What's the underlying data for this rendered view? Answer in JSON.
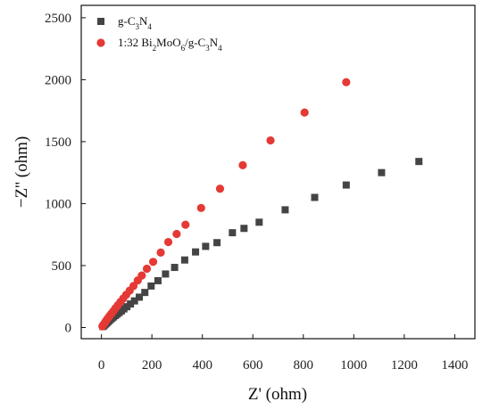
{
  "chart_data": {
    "type": "scatter",
    "xlabel": "Z' (ohm)",
    "ylabel": "−Z'' (ohm)",
    "xlim": [
      -80,
      1480
    ],
    "ylim": [
      -90,
      2600
    ],
    "xticks": [
      0,
      200,
      400,
      600,
      800,
      1000,
      1200,
      1400
    ],
    "yticks": [
      0,
      500,
      1000,
      1500,
      2000,
      2500
    ],
    "grid": false,
    "legend_position": "top-left",
    "series": [
      {
        "name": "g-C3N4",
        "marker": "square",
        "color": "#444444",
        "x": [
          6,
          10,
          14,
          18,
          22,
          26,
          31,
          36,
          42,
          48,
          55,
          62,
          70,
          79,
          89,
          101,
          115,
          131,
          150,
          172,
          197,
          224,
          254,
          290,
          330,
          373,
          413,
          458,
          519,
          565,
          625,
          728,
          845,
          970,
          1110,
          1258
        ],
        "y": [
          8,
          16,
          24,
          32,
          40,
          48,
          56,
          66,
          76,
          86,
          97,
          108,
          120,
          134,
          150,
          168,
          190,
          215,
          245,
          283,
          335,
          378,
          432,
          485,
          545,
          610,
          655,
          685,
          765,
          800,
          850,
          950,
          1050,
          1150,
          1250,
          1340
        ]
      },
      {
        "name": "1:32 Bi2MoO6/g-C3N4",
        "marker": "circle",
        "color": "#e53935",
        "x": [
          4,
          8,
          12,
          16,
          21,
          27,
          33,
          40,
          48,
          56,
          65,
          75,
          86,
          98,
          112,
          127,
          144,
          160,
          180,
          205,
          235,
          265,
          298,
          333,
          395,
          470,
          560,
          670,
          805,
          970
        ],
        "y": [
          10,
          22,
          34,
          47,
          62,
          78,
          95,
          113,
          134,
          156,
          180,
          206,
          234,
          264,
          298,
          335,
          380,
          420,
          475,
          530,
          605,
          690,
          755,
          830,
          965,
          1120,
          1310,
          1510,
          1735,
          1980
        ]
      }
    ]
  },
  "legend": {
    "entries": [
      {
        "parts": [
          {
            "t": "g-C"
          },
          {
            "t": "3",
            "sub": true
          },
          {
            "t": "N"
          },
          {
            "t": "4",
            "sub": true
          }
        ]
      },
      {
        "parts": [
          {
            "t": "1:32 Bi"
          },
          {
            "t": "2",
            "sub": true
          },
          {
            "t": "MoO"
          },
          {
            "t": "6",
            "sub": true
          },
          {
            "t": "/g-C"
          },
          {
            "t": "3",
            "sub": true
          },
          {
            "t": "N"
          },
          {
            "t": "4",
            "sub": true
          }
        ]
      }
    ]
  }
}
